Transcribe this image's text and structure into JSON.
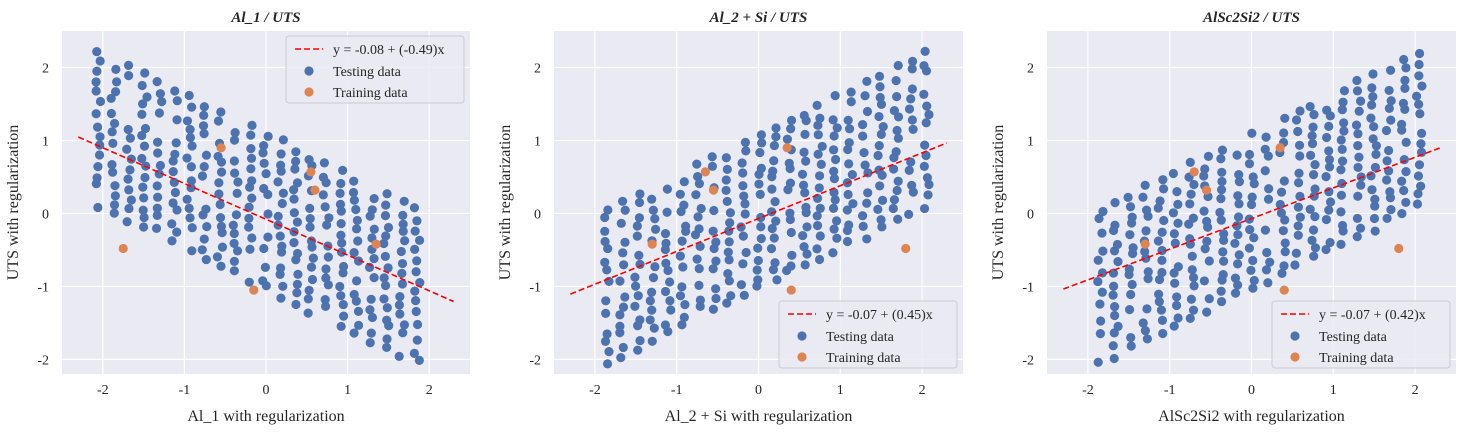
{
  "colors": {
    "background": "#eaeaf2",
    "grid": "#ffffff",
    "testing": "#4c72b0",
    "training": "#dd8452",
    "fit_line": "#ff0000"
  },
  "legend_labels": {
    "testing": "Testing data",
    "training": "Training data"
  },
  "chart_data": [
    {
      "type": "scatter",
      "title": "Al_1 / UTS",
      "xlabel": "Al_1 with regularization",
      "ylabel": "UTS with regularization",
      "xlim": [
        -2.5,
        2.5
      ],
      "ylim": [
        -2.2,
        2.5
      ],
      "xticks": [
        -2,
        -1,
        0,
        1,
        2
      ],
      "yticks": [
        -2,
        -1,
        0,
        1,
        2
      ],
      "grid": true,
      "legend_position": "top-right",
      "fit": {
        "label": "y = -0.08 + (-0.49)x",
        "intercept": -0.08,
        "slope": -0.49,
        "x_range": [
          -2.3,
          2.3
        ]
      },
      "testing_grid": {
        "x_range": [
          -2.05,
          1.85
        ],
        "y_center_left": 1.15,
        "y_center_right": -1.0,
        "half_height": 1.05,
        "columns": 22,
        "rows": 16,
        "seed": 11
      },
      "training": {
        "x": [
          -1.75,
          -0.55,
          0.55,
          0.6,
          -0.15,
          1.35
        ],
        "y": [
          -0.48,
          0.9,
          0.57,
          0.32,
          -1.05,
          -0.42
        ]
      }
    },
    {
      "type": "scatter",
      "title": "Al_2 + Si / UTS",
      "xlabel": "Al_2 + Si with regularization",
      "ylabel": "UTS with regularization",
      "xlim": [
        -2.5,
        2.5
      ],
      "ylim": [
        -2.2,
        2.5
      ],
      "xticks": [
        -2,
        -1,
        0,
        1,
        2
      ],
      "yticks": [
        -2,
        -1,
        0,
        1,
        2
      ],
      "grid": true,
      "legend_position": "bottom-right",
      "fit": {
        "label": "y = -0.07 + (0.45)x",
        "intercept": -0.07,
        "slope": 0.45,
        "x_range": [
          -2.3,
          2.3
        ]
      },
      "testing_grid": {
        "x_range": [
          -1.85,
          2.05
        ],
        "y_center_left": -1.0,
        "y_center_right": 1.15,
        "half_height": 1.05,
        "columns": 22,
        "rows": 16,
        "seed": 23
      },
      "training": {
        "x": [
          -1.3,
          -0.65,
          -0.55,
          0.35,
          0.4,
          1.8
        ],
        "y": [
          -0.42,
          0.57,
          0.32,
          0.9,
          -1.05,
          -0.48
        ]
      }
    },
    {
      "type": "scatter",
      "title": "AlSc2Si2 / UTS",
      "xlabel": "AlSc2Si2 with regularization",
      "ylabel": "UTS with regularization",
      "xlim": [
        -2.5,
        2.5
      ],
      "ylim": [
        -2.2,
        2.5
      ],
      "xticks": [
        -2,
        -1,
        0,
        1,
        2
      ],
      "yticks": [
        -2,
        -1,
        0,
        1,
        2
      ],
      "grid": true,
      "legend_position": "bottom-right",
      "fit": {
        "label": "y = -0.07 + (0.42)x",
        "intercept": -0.07,
        "slope": 0.42,
        "x_range": [
          -2.3,
          2.3
        ]
      },
      "testing_grid": {
        "x_range": [
          -1.85,
          2.05
        ],
        "y_center_left": -1.0,
        "y_center_right": 1.15,
        "half_height": 1.05,
        "columns": 22,
        "rows": 16,
        "seed": 37
      },
      "training": {
        "x": [
          -1.3,
          -0.7,
          -0.55,
          0.35,
          0.4,
          1.8
        ],
        "y": [
          -0.42,
          0.57,
          0.32,
          0.9,
          -1.05,
          -0.48
        ]
      }
    }
  ]
}
